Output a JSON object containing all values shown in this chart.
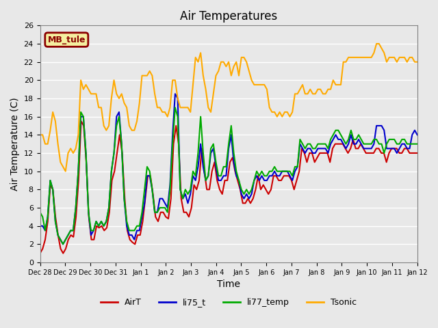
{
  "title": "Air Temperatures",
  "xlabel": "Time",
  "ylabel": "Air Temperature (C)",
  "ylim": [
    0,
    26
  ],
  "xlim": [
    0,
    15
  ],
  "background_color": "#e8e8e8",
  "plot_bg_color": "#e8e8e8",
  "grid_color": "white",
  "annotation_label": "MB_tule",
  "annotation_box_color": "#f5f0a0",
  "annotation_border_color": "#8b0000",
  "annotation_text_color": "#8b0000",
  "xtick_labels": [
    "Dec 28",
    "Dec 29",
    "Dec 30",
    "Dec 31",
    "Jan 1",
    "Jan 2",
    "Jan 3",
    "Jan 4",
    "Jan 5",
    "Jan 6",
    "Jan 7",
    "Jan 8",
    "Jan 9",
    "Jan 10",
    "Jan 11",
    "Jan 12"
  ],
  "xtick_positions": [
    0,
    1,
    2,
    3,
    4,
    5,
    6,
    7,
    8,
    9,
    10,
    11,
    12,
    13,
    14,
    15
  ],
  "ytick_positions": [
    0,
    2,
    4,
    6,
    8,
    10,
    12,
    14,
    16,
    18,
    20,
    22,
    24,
    26
  ],
  "series": {
    "AirT": {
      "color": "#cc0000",
      "linewidth": 1.5,
      "y": [
        1.0,
        1.5,
        2.5,
        4.5,
        8.5,
        8.0,
        5.0,
        3.0,
        1.5,
        1.0,
        1.5,
        2.5,
        3.0,
        2.8,
        5.0,
        9.0,
        15.5,
        15.0,
        11.0,
        5.0,
        2.5,
        2.5,
        4.0,
        3.8,
        4.0,
        3.5,
        3.8,
        5.5,
        9.0,
        10.0,
        12.0,
        14.0,
        12.0,
        7.0,
        3.5,
        2.5,
        2.2,
        2.0,
        3.0,
        3.0,
        4.5,
        7.0,
        9.5,
        9.5,
        7.5,
        5.0,
        4.5,
        5.5,
        5.5,
        5.0,
        4.8,
        7.0,
        13.0,
        15.0,
        13.0,
        7.0,
        5.5,
        5.5,
        5.0,
        6.0,
        8.5,
        8.0,
        9.0,
        12.5,
        10.0,
        8.0,
        8.0,
        10.0,
        11.0,
        9.0,
        8.0,
        7.5,
        9.0,
        9.0,
        11.0,
        11.5,
        10.0,
        9.0,
        8.0,
        6.5,
        6.5,
        7.0,
        6.5,
        7.0,
        8.0,
        9.5,
        8.0,
        8.5,
        8.0,
        7.5,
        8.0,
        9.5,
        9.5,
        9.0,
        9.0,
        9.5,
        9.5,
        9.5,
        9.0,
        8.0,
        9.0,
        10.0,
        12.5,
        12.0,
        11.0,
        12.0,
        12.0,
        11.0,
        11.5,
        12.0,
        12.0,
        12.0,
        12.0,
        11.0,
        12.5,
        13.0,
        13.0,
        13.0,
        13.0,
        12.5,
        12.0,
        12.5,
        13.5,
        12.5,
        12.5,
        13.0,
        12.5,
        12.0,
        12.0,
        12.0,
        12.0,
        12.5,
        12.5,
        12.0,
        12.0,
        11.0,
        12.0,
        12.5,
        12.5,
        12.5,
        12.0,
        12.0,
        12.5,
        12.5,
        12.0,
        12.0,
        12.0,
        12.0
      ]
    },
    "li75_t": {
      "color": "#0000cc",
      "linewidth": 1.5,
      "y": [
        4.0,
        4.0,
        3.5,
        5.0,
        9.0,
        8.0,
        4.5,
        3.0,
        2.5,
        2.0,
        2.5,
        3.0,
        3.5,
        3.5,
        6.0,
        10.0,
        16.0,
        16.0,
        12.0,
        5.5,
        3.0,
        3.5,
        4.5,
        4.0,
        4.5,
        4.0,
        4.5,
        6.0,
        10.0,
        12.0,
        16.0,
        16.5,
        13.0,
        7.0,
        4.0,
        3.0,
        3.0,
        2.5,
        3.5,
        3.5,
        5.0,
        6.5,
        9.5,
        9.5,
        8.0,
        5.5,
        5.5,
        7.0,
        7.0,
        6.5,
        6.0,
        8.5,
        14.0,
        18.5,
        18.0,
        8.0,
        7.0,
        7.5,
        6.5,
        7.5,
        9.5,
        9.0,
        10.5,
        13.0,
        10.5,
        9.0,
        9.5,
        12.0,
        12.5,
        10.5,
        9.0,
        9.0,
        9.5,
        9.5,
        12.5,
        14.0,
        11.0,
        9.5,
        9.0,
        7.5,
        7.0,
        7.5,
        7.0,
        7.5,
        9.0,
        9.5,
        9.0,
        9.5,
        9.0,
        9.0,
        9.5,
        9.5,
        10.0,
        9.5,
        9.5,
        10.0,
        10.0,
        10.0,
        9.5,
        9.0,
        10.0,
        10.5,
        13.0,
        12.5,
        12.0,
        12.5,
        12.5,
        12.0,
        12.0,
        12.5,
        12.5,
        12.5,
        12.5,
        12.0,
        13.0,
        13.5,
        14.0,
        13.5,
        13.5,
        13.0,
        12.5,
        13.0,
        14.0,
        13.0,
        13.0,
        13.5,
        13.0,
        12.5,
        12.5,
        12.5,
        12.5,
        13.0,
        15.0,
        15.0,
        15.0,
        14.5,
        12.5,
        12.5,
        12.5,
        12.5,
        12.0,
        12.5,
        13.0,
        13.0,
        12.5,
        12.5,
        14.0,
        14.5,
        14.0
      ]
    },
    "li77_temp": {
      "color": "#00aa00",
      "linewidth": 1.5,
      "y": [
        5.5,
        5.0,
        3.5,
        5.0,
        9.0,
        8.0,
        4.5,
        3.0,
        2.5,
        2.0,
        2.5,
        3.0,
        3.5,
        3.5,
        6.0,
        10.0,
        16.5,
        16.0,
        12.0,
        5.5,
        3.5,
        3.5,
        4.5,
        4.0,
        4.5,
        4.0,
        4.5,
        6.0,
        10.0,
        12.0,
        15.0,
        16.0,
        13.0,
        7.0,
        4.5,
        3.5,
        3.5,
        3.5,
        4.0,
        4.0,
        5.5,
        8.0,
        10.5,
        10.0,
        8.0,
        5.5,
        5.5,
        6.0,
        6.0,
        6.0,
        5.5,
        8.0,
        13.0,
        17.0,
        16.0,
        8.0,
        7.0,
        8.0,
        7.5,
        8.0,
        10.0,
        9.5,
        12.0,
        16.0,
        12.0,
        9.0,
        9.5,
        12.5,
        13.0,
        11.0,
        9.5,
        9.5,
        10.5,
        10.5,
        13.0,
        15.0,
        12.0,
        10.0,
        9.0,
        8.0,
        7.5,
        8.0,
        7.5,
        8.0,
        9.0,
        10.0,
        9.5,
        10.0,
        9.5,
        9.5,
        10.0,
        10.0,
        10.5,
        10.0,
        10.0,
        10.0,
        10.0,
        10.0,
        10.0,
        9.5,
        10.5,
        10.5,
        13.5,
        13.0,
        12.5,
        13.0,
        13.0,
        12.5,
        12.5,
        13.0,
        13.0,
        13.0,
        13.0,
        12.5,
        13.5,
        14.0,
        14.5,
        14.5,
        14.0,
        13.5,
        13.0,
        13.5,
        14.5,
        13.5,
        13.5,
        14.0,
        13.5,
        13.0,
        13.0,
        13.0,
        13.0,
        13.5,
        13.5,
        13.0,
        13.0,
        12.0,
        13.0,
        13.5,
        13.5,
        13.5,
        13.0,
        13.0,
        13.5,
        13.5,
        13.0,
        13.0,
        13.0,
        13.0,
        13.0
      ]
    },
    "Tsonic": {
      "color": "#ffaa00",
      "linewidth": 1.5,
      "y": [
        14.0,
        14.0,
        13.0,
        13.0,
        14.5,
        16.5,
        15.5,
        13.0,
        11.0,
        10.5,
        10.0,
        12.0,
        12.5,
        12.0,
        12.5,
        14.0,
        20.0,
        19.0,
        19.5,
        19.0,
        18.5,
        18.5,
        18.5,
        17.0,
        17.0,
        15.0,
        14.5,
        15.0,
        18.0,
        20.0,
        18.5,
        18.0,
        18.5,
        17.5,
        17.0,
        15.0,
        14.5,
        14.5,
        15.5,
        17.5,
        20.5,
        20.5,
        20.5,
        21.0,
        20.5,
        18.5,
        17.0,
        17.0,
        16.5,
        16.5,
        16.0,
        17.0,
        20.0,
        20.0,
        18.0,
        17.0,
        17.0,
        17.0,
        17.0,
        16.5,
        19.5,
        22.5,
        22.0,
        23.0,
        20.5,
        19.0,
        17.0,
        16.5,
        18.5,
        20.5,
        21.0,
        22.0,
        22.0,
        21.5,
        22.0,
        20.5,
        21.5,
        22.0,
        20.5,
        22.5,
        22.5,
        22.0,
        21.0,
        20.0,
        19.5,
        19.5,
        19.5,
        19.5,
        19.5,
        19.0,
        17.0,
        16.5,
        16.5,
        16.0,
        16.5,
        16.0,
        16.5,
        16.5,
        16.0,
        16.5,
        18.5,
        18.5,
        19.0,
        19.5,
        18.5,
        18.5,
        19.0,
        18.5,
        18.5,
        19.0,
        19.0,
        18.5,
        18.5,
        19.0,
        19.0,
        20.0,
        19.5,
        19.5,
        19.5,
        22.0,
        22.0,
        22.5,
        22.5,
        22.5,
        22.5,
        22.5,
        22.5,
        22.5,
        22.5,
        22.5,
        22.5,
        23.0,
        24.0,
        24.0,
        23.5,
        23.0,
        22.0,
        22.5,
        22.5,
        22.5,
        22.0,
        22.5,
        22.5,
        22.5,
        22.0,
        22.5,
        22.5,
        22.0,
        22.0
      ]
    }
  },
  "legend": {
    "entries": [
      "AirT",
      "li75_t",
      "li77_temp",
      "Tsonic"
    ],
    "colors": [
      "#cc0000",
      "#0000cc",
      "#00aa00",
      "#ffaa00"
    ],
    "ncol": 4
  }
}
